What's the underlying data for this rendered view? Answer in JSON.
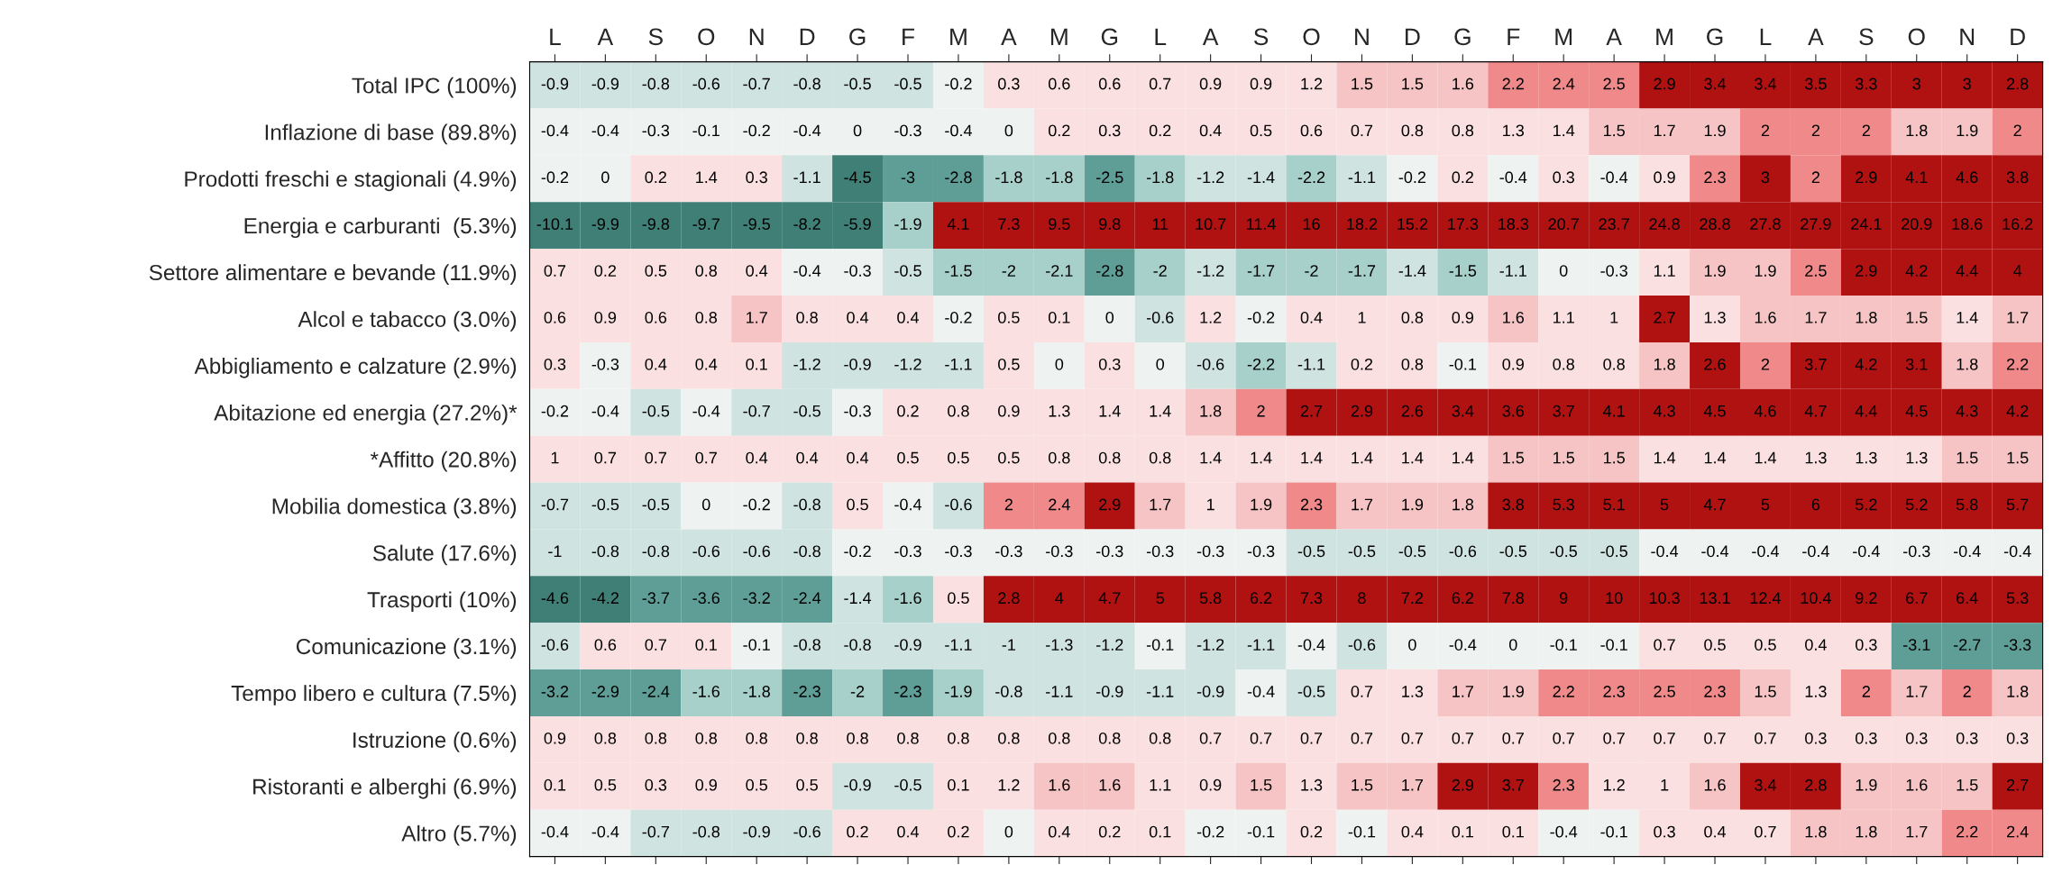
{
  "chart_data": {
    "type": "heatmap",
    "data_labels": true,
    "categories": [
      "L",
      "A",
      "S",
      "O",
      "N",
      "D",
      "G",
      "F",
      "M",
      "A",
      "M",
      "G",
      "L",
      "A",
      "S",
      "O",
      "N",
      "D",
      "G",
      "F",
      "M",
      "A",
      "M",
      "G",
      "L",
      "A",
      "S",
      "O",
      "N",
      "D"
    ],
    "y_categories": [
      "Total IPC (100%)",
      "Inflazione di base (89.8%)",
      "Prodotti freschi e stagionali (4.9%)",
      "Energia e carburanti  (5.3%)",
      "Settore alimentare e bevande (11.9%)",
      "Alcol e tabacco (3.0%)",
      "Abbigliamento e calzature (2.9%)",
      "Abitazione ed energia (27.2%)*",
      "*Affitto (20.8%)",
      "Mobilia domestica (3.8%)",
      "Salute (17.6%)",
      "Trasporti (10%)",
      "Comunicazione (3.1%)",
      "Tempo libero e cultura (7.5%)",
      "Istruzione (0.6%)",
      "Ristoranti e alberghi (6.9%)",
      "Altro (5.7%)"
    ],
    "cells": [
      [
        -0.9,
        -0.9,
        -0.8,
        -0.6,
        -0.7,
        -0.8,
        -0.5,
        -0.5,
        -0.2,
        0.3,
        0.6,
        0.6,
        0.7,
        0.9,
        0.9,
        1.2,
        1.5,
        1.5,
        1.6,
        2.2,
        2.4,
        2.5,
        2.9,
        3.4,
        3.4,
        3.5,
        3.3,
        3,
        3,
        2.8
      ],
      [
        -0.4,
        -0.4,
        -0.3,
        -0.1,
        -0.2,
        -0.4,
        0,
        -0.3,
        -0.4,
        0,
        0.2,
        0.3,
        0.2,
        0.4,
        0.5,
        0.6,
        0.7,
        0.8,
        0.8,
        1.3,
        1.4,
        1.5,
        1.7,
        1.9,
        2,
        2,
        2,
        1.8,
        1.9,
        2
      ],
      [
        -0.2,
        0,
        0.2,
        1.4,
        0.3,
        -1.1,
        -4.5,
        -3,
        -2.8,
        -1.8,
        -1.8,
        -2.5,
        -1.8,
        -1.2,
        -1.4,
        -2.2,
        -1.1,
        -0.2,
        0.2,
        -0.4,
        0.3,
        -0.4,
        0.9,
        2.3,
        3,
        2,
        2.9,
        4.1,
        4.6,
        3.8
      ],
      [
        -10.1,
        -9.9,
        -9.8,
        -9.7,
        -9.5,
        -8.2,
        -5.9,
        -1.9,
        4.1,
        7.3,
        9.5,
        9.8,
        11,
        10.7,
        11.4,
        16,
        18.2,
        15.2,
        17.3,
        18.3,
        20.7,
        23.7,
        24.8,
        28.8,
        27.8,
        27.9,
        24.1,
        20.9,
        18.6,
        16.2
      ],
      [
        0.7,
        0.2,
        0.5,
        0.8,
        0.4,
        -0.4,
        -0.3,
        -0.5,
        -1.5,
        -2,
        -2.1,
        -2.8,
        -2,
        -1.2,
        -1.7,
        -2,
        -1.7,
        -1.4,
        -1.5,
        -1.1,
        0,
        -0.3,
        1.1,
        1.9,
        1.9,
        2.5,
        2.9,
        4.2,
        4.4,
        4
      ],
      [
        0.6,
        0.9,
        0.6,
        0.8,
        1.7,
        0.8,
        0.4,
        0.4,
        -0.2,
        0.5,
        0.1,
        0,
        -0.6,
        1.2,
        -0.2,
        0.4,
        1,
        0.8,
        0.9,
        1.6,
        1.1,
        1,
        2.7,
        1.3,
        1.6,
        1.7,
        1.8,
        1.5,
        1.4,
        1.7
      ],
      [
        0.3,
        -0.3,
        0.4,
        0.4,
        0.1,
        -1.2,
        -0.9,
        -1.2,
        -1.1,
        0.5,
        0,
        0.3,
        0,
        -0.6,
        -2.2,
        -1.1,
        0.2,
        0.8,
        -0.1,
        0.9,
        0.8,
        0.8,
        1.8,
        2.6,
        2,
        3.7,
        4.2,
        3.1,
        1.8,
        2.2
      ],
      [
        -0.2,
        -0.4,
        -0.5,
        -0.4,
        -0.7,
        -0.5,
        -0.3,
        0.2,
        0.8,
        0.9,
        1.3,
        1.4,
        1.4,
        1.8,
        2,
        2.7,
        2.9,
        2.6,
        3.4,
        3.6,
        3.7,
        4.1,
        4.3,
        4.5,
        4.6,
        4.7,
        4.4,
        4.5,
        4.3,
        4.2
      ],
      [
        1,
        0.7,
        0.7,
        0.7,
        0.4,
        0.4,
        0.4,
        0.5,
        0.5,
        0.5,
        0.8,
        0.8,
        0.8,
        1.4,
        1.4,
        1.4,
        1.4,
        1.4,
        1.4,
        1.5,
        1.5,
        1.5,
        1.4,
        1.4,
        1.4,
        1.3,
        1.3,
        1.3,
        1.5,
        1.5
      ],
      [
        -0.7,
        -0.5,
        -0.5,
        0,
        -0.2,
        -0.8,
        0.5,
        -0.4,
        -0.6,
        2,
        2.4,
        2.9,
        1.7,
        1,
        1.9,
        2.3,
        1.7,
        1.9,
        1.8,
        3.8,
        5.3,
        5.1,
        5,
        4.7,
        5,
        6,
        5.2,
        5.2,
        5.8,
        5.7
      ],
      [
        -1,
        -0.8,
        -0.8,
        -0.6,
        -0.6,
        -0.8,
        -0.2,
        -0.3,
        -0.3,
        -0.3,
        -0.3,
        -0.3,
        -0.3,
        -0.3,
        -0.3,
        -0.5,
        -0.5,
        -0.5,
        -0.6,
        -0.5,
        -0.5,
        -0.5,
        -0.4,
        -0.4,
        -0.4,
        -0.4,
        -0.4,
        -0.3,
        -0.4,
        -0.4
      ],
      [
        -4.6,
        -4.2,
        -3.7,
        -3.6,
        -3.2,
        -2.4,
        -1.4,
        -1.6,
        0.5,
        2.8,
        4,
        4.7,
        5,
        5.8,
        6.2,
        7.3,
        8,
        7.2,
        6.2,
        7.8,
        9,
        10,
        10.3,
        13.1,
        12.4,
        10.4,
        9.2,
        6.7,
        6.4,
        5.3
      ],
      [
        -0.6,
        0.6,
        0.7,
        0.1,
        -0.1,
        -0.8,
        -0.8,
        -0.9,
        -1.1,
        -1,
        -1.3,
        -1.2,
        -0.1,
        -1.2,
        -1.1,
        -0.4,
        -0.6,
        0,
        -0.4,
        0,
        -0.1,
        -0.1,
        0.7,
        0.5,
        0.5,
        0.4,
        0.3,
        -3.1,
        -2.7,
        -3.3
      ],
      [
        -3.2,
        -2.9,
        -2.4,
        -1.6,
        -1.8,
        -2.3,
        -2,
        -2.3,
        -1.9,
        -0.8,
        -1.1,
        -0.9,
        -1.1,
        -0.9,
        -0.4,
        -0.5,
        0.7,
        1.3,
        1.7,
        1.9,
        2.2,
        2.3,
        2.5,
        2.3,
        1.5,
        1.3,
        2,
        1.7,
        2,
        1.8
      ],
      [
        0.9,
        0.8,
        0.8,
        0.8,
        0.8,
        0.8,
        0.8,
        0.8,
        0.8,
        0.8,
        0.8,
        0.8,
        0.8,
        0.7,
        0.7,
        0.7,
        0.7,
        0.7,
        0.7,
        0.7,
        0.7,
        0.7,
        0.7,
        0.7,
        0.7,
        0.3,
        0.3,
        0.3,
        0.3,
        0.3
      ],
      [
        0.1,
        0.5,
        0.3,
        0.9,
        0.5,
        0.5,
        -0.9,
        -0.5,
        0.1,
        1.2,
        1.6,
        1.6,
        1.1,
        0.9,
        1.5,
        1.3,
        1.5,
        1.7,
        2.9,
        3.7,
        2.3,
        1.2,
        1,
        1.6,
        3.4,
        2.8,
        1.9,
        1.6,
        1.5,
        2.7
      ],
      [
        -0.4,
        -0.4,
        -0.7,
        -0.8,
        -0.9,
        -0.6,
        0.2,
        0.4,
        0.2,
        0,
        0.4,
        0.2,
        0.1,
        -0.2,
        -0.1,
        0.2,
        -0.1,
        0.4,
        0.1,
        0.1,
        -0.4,
        -0.1,
        0.3,
        0.4,
        0.7,
        1.8,
        1.8,
        1.7,
        2.2,
        2.4
      ]
    ]
  }
}
